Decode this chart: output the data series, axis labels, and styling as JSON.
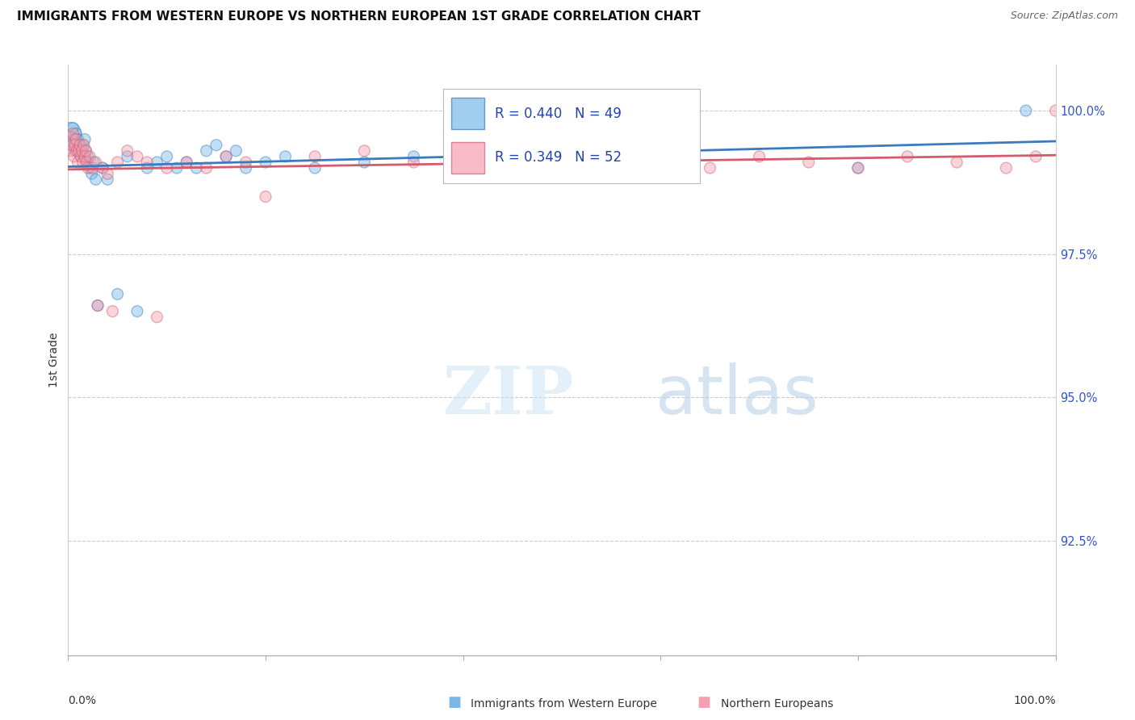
{
  "title": "IMMIGRANTS FROM WESTERN EUROPE VS NORTHERN EUROPEAN 1ST GRADE CORRELATION CHART",
  "source": "Source: ZipAtlas.com",
  "ylabel": "1st Grade",
  "xlim": [
    0.0,
    100.0
  ],
  "ylim": [
    90.5,
    100.8
  ],
  "ytick_vals": [
    92.5,
    95.0,
    97.5,
    100.0
  ],
  "ytick_labels": [
    "92.5%",
    "95.0%",
    "97.5%",
    "100.0%"
  ],
  "blue_R": 0.44,
  "blue_N": 49,
  "pink_R": 0.349,
  "pink_N": 52,
  "blue_color": "#7ab8e8",
  "pink_color": "#f4a0b0",
  "blue_line_color": "#3a7abf",
  "pink_line_color": "#d45a6e",
  "legend_label_blue": "Immigrants from Western Europe",
  "legend_label_pink": "Northern Europeans",
  "blue_x": [
    0.2,
    0.3,
    0.4,
    0.5,
    0.6,
    0.7,
    0.8,
    0.9,
    1.0,
    1.1,
    1.2,
    1.3,
    1.4,
    1.5,
    1.6,
    1.7,
    1.8,
    1.9,
    2.0,
    2.2,
    2.4,
    2.6,
    2.8,
    3.0,
    3.5,
    4.0,
    5.0,
    6.0,
    7.0,
    8.0,
    9.0,
    10.0,
    11.0,
    12.0,
    13.0,
    14.0,
    15.0,
    16.0,
    17.0,
    18.0,
    20.0,
    22.0,
    25.0,
    30.0,
    35.0,
    40.0,
    55.0,
    80.0,
    97.0
  ],
  "blue_y": [
    99.6,
    99.5,
    99.4,
    99.7,
    99.5,
    99.3,
    99.6,
    99.4,
    99.5,
    99.3,
    99.4,
    99.2,
    99.3,
    99.4,
    99.2,
    99.5,
    99.3,
    99.1,
    99.2,
    99.0,
    98.9,
    99.1,
    98.8,
    96.6,
    99.0,
    98.8,
    96.8,
    99.2,
    96.5,
    99.0,
    99.1,
    99.2,
    99.0,
    99.1,
    99.0,
    99.3,
    99.4,
    99.2,
    99.3,
    99.0,
    99.1,
    99.2,
    99.0,
    99.1,
    99.2,
    99.3,
    99.2,
    99.0,
    100.0
  ],
  "blue_sizes": [
    400,
    200,
    120,
    100,
    100,
    100,
    100,
    100,
    100,
    100,
    100,
    100,
    100,
    100,
    100,
    100,
    100,
    100,
    100,
    100,
    100,
    100,
    100,
    100,
    100,
    100,
    100,
    100,
    100,
    100,
    100,
    100,
    100,
    100,
    100,
    100,
    100,
    100,
    100,
    100,
    100,
    100,
    100,
    100,
    100,
    100,
    100,
    100,
    100
  ],
  "pink_x": [
    0.2,
    0.3,
    0.4,
    0.5,
    0.6,
    0.7,
    0.8,
    0.9,
    1.0,
    1.1,
    1.2,
    1.3,
    1.4,
    1.5,
    1.6,
    1.7,
    1.8,
    1.9,
    2.0,
    2.2,
    2.5,
    2.8,
    3.0,
    3.5,
    4.0,
    4.5,
    5.0,
    6.0,
    7.0,
    8.0,
    9.0,
    10.0,
    12.0,
    14.0,
    16.0,
    18.0,
    20.0,
    25.0,
    30.0,
    35.0,
    40.0,
    50.0,
    60.0,
    65.0,
    70.0,
    75.0,
    80.0,
    85.0,
    90.0,
    95.0,
    98.0,
    100.0
  ],
  "pink_y": [
    99.5,
    99.3,
    99.4,
    99.6,
    99.2,
    99.4,
    99.5,
    99.3,
    99.1,
    99.3,
    99.4,
    99.2,
    99.3,
    99.1,
    99.4,
    99.2,
    99.3,
    99.1,
    99.0,
    99.2,
    99.0,
    99.1,
    96.6,
    99.0,
    98.9,
    96.5,
    99.1,
    99.3,
    99.2,
    99.1,
    96.4,
    99.0,
    99.1,
    99.0,
    99.2,
    99.1,
    98.5,
    99.2,
    99.3,
    99.1,
    99.2,
    99.0,
    99.1,
    99.0,
    99.2,
    99.1,
    99.0,
    99.2,
    99.1,
    99.0,
    99.2,
    100.0
  ],
  "pink_sizes": [
    200,
    100,
    100,
    100,
    100,
    100,
    100,
    100,
    100,
    100,
    100,
    100,
    100,
    100,
    100,
    100,
    100,
    100,
    100,
    100,
    100,
    100,
    100,
    100,
    100,
    100,
    100,
    100,
    100,
    100,
    100,
    100,
    100,
    100,
    100,
    100,
    100,
    100,
    100,
    100,
    100,
    100,
    100,
    100,
    100,
    100,
    100,
    100,
    100,
    100,
    100,
    100
  ]
}
